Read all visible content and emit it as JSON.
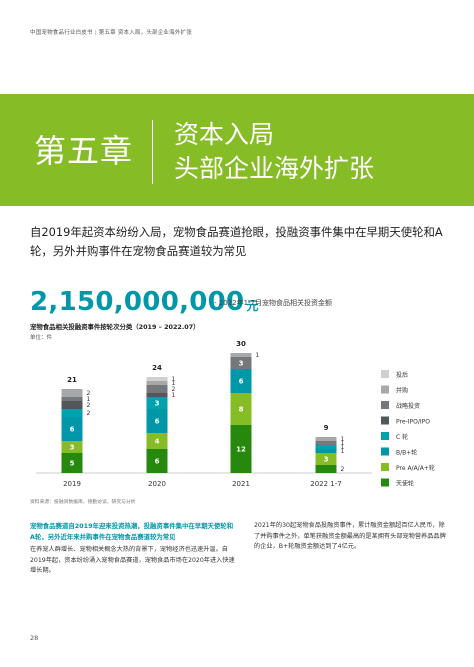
{
  "header": {
    "report": "中国宠物食品行业白皮书",
    "section": "第五章 资本入局，头部企业海外扩张"
  },
  "chapter": {
    "number": "第五章",
    "title_line1": "资本入局",
    "title_line2": "头部企业海外扩张"
  },
  "lead": "自2019年起资本纷纷入局，宠物食品赛道抢眼，投融资事件集中在早期天使轮和A轮，另外并购事件在宠物食品赛道较为常见",
  "headline": {
    "amount": "2,150,000,000",
    "unit": "元",
    "caption": "- 2022年1-7月宠物食品相关投资金额"
  },
  "chart_data": {
    "type": "bar",
    "stacked": true,
    "title": "宠物食品相关投融资事件按轮次分类（2019 – 2022.07）",
    "unit_label": "单位：件",
    "categories": [
      "2019",
      "2020",
      "2021",
      "2022 1-7"
    ],
    "totals": [
      21,
      24,
      30,
      9
    ],
    "series": [
      {
        "name": "天使轮",
        "color": "#26890d",
        "values": [
          5,
          6,
          12,
          2
        ]
      },
      {
        "name": "Pre A/A/A+轮",
        "color": "#86bc25",
        "values": [
          3,
          4,
          8,
          3
        ]
      },
      {
        "name": "B/B+轮",
        "color": "#0097a9",
        "values": [
          6,
          6,
          6,
          1
        ]
      },
      {
        "name": "C 轮",
        "color": "#00a3ad",
        "values": [
          2,
          3,
          0,
          1
        ]
      },
      {
        "name": "Pre-IPO/IPO",
        "color": "#53565a",
        "values": [
          2,
          1,
          0,
          0
        ]
      },
      {
        "name": "战略投资",
        "color": "#75787b",
        "values": [
          1,
          2,
          3,
          1
        ]
      },
      {
        "name": "并购",
        "color": "#a7a8aa",
        "values": [
          2,
          1,
          1,
          1
        ]
      },
      {
        "name": "投后",
        "color": "#d0d0ce",
        "values": [
          0,
          1,
          0,
          0
        ]
      }
    ],
    "ylim": [
      0,
      30
    ],
    "grid": false,
    "legend": "right"
  },
  "source": "资料来源：投融资数据库，德勤访谈，研究与分析",
  "highlight": "宠物食品赛道自2019年迎来投资热潮，投融资事件集中在早期天使轮和A轮，另外近年来并购事件在宠物食品赛道较为常见",
  "left_body": "在养宠人群增长、宠物相关概念大热的背景下，宠物经济也迅速升温。自2019年起，资本纷纷涌入宠物食品赛道，宠物食品市场在2020年进入快速增长期。",
  "right_body": "2021年的30起宠物食品投融资事件，累计融资金额超百亿人民币，除了并购事件之外，单笔获融资金额最高的是某拥有头部宠物营养品品牌的企业，B+轮融资金额达到了4亿元。",
  "page_number": "28"
}
